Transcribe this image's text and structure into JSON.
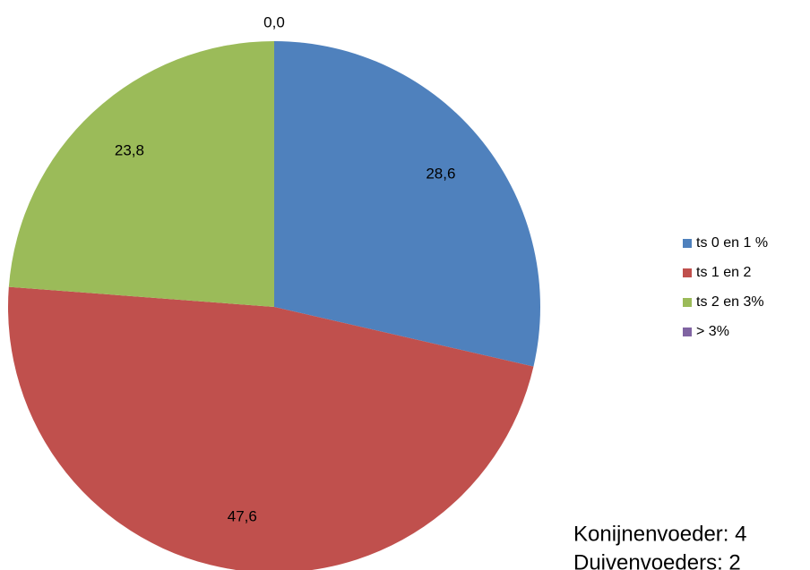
{
  "chart_data": {
    "type": "pie",
    "categories": [
      "ts 0 en 1 %",
      "ts 1 en  2",
      "ts 2 en  3%",
      "> 3%"
    ],
    "values": [
      28.6,
      47.6,
      23.8,
      0.0
    ],
    "value_labels": [
      "28,6",
      "47,6",
      "23,8",
      "0,0"
    ],
    "colors": [
      "#4f81bd",
      "#c0504d",
      "#9bbb59",
      "#8064a2"
    ],
    "legend": "right",
    "annotations": [
      "Konijnenvoeder: 4",
      "Duivenvoeders: 2"
    ]
  }
}
